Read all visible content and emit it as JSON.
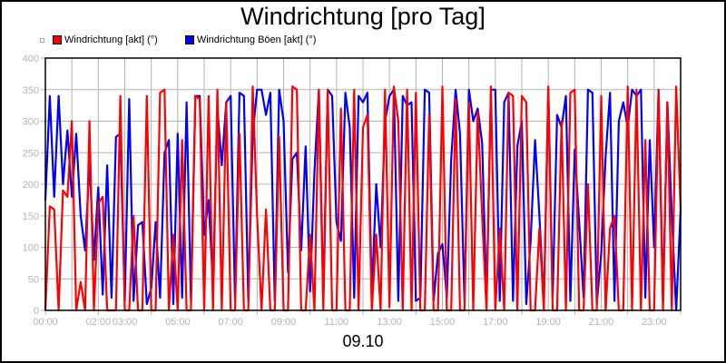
{
  "chart_data": {
    "type": "line",
    "title": "Windrichtung [pro Tag]",
    "xlabel": "09.10",
    "ylabel": "",
    "ylim": [
      0,
      400
    ],
    "xlim_hours": [
      0,
      24
    ],
    "grid": true,
    "legend_position": "top-left",
    "y_ticks": [
      "0",
      "50",
      "100",
      "150",
      "200",
      "250",
      "300",
      "350",
      "400"
    ],
    "x_ticks": [
      {
        "hour": 0,
        "label": "00:00"
      },
      {
        "hour": 2,
        "label": "02:00"
      },
      {
        "hour": 3,
        "label": "03:00"
      },
      {
        "hour": 5,
        "label": "05:00"
      },
      {
        "hour": 7,
        "label": "07:00"
      },
      {
        "hour": 9,
        "label": "09:00"
      },
      {
        "hour": 11,
        "label": "11:00"
      },
      {
        "hour": 13,
        "label": "13:00"
      },
      {
        "hour": 15,
        "label": "15:00"
      },
      {
        "hour": 17,
        "label": "17:00"
      },
      {
        "hour": 19,
        "label": "19:00"
      },
      {
        "hour": 21,
        "label": "21:00"
      },
      {
        "hour": 23,
        "label": "23:00"
      }
    ],
    "x_interval_minutes": 10,
    "series": [
      {
        "name": "Windrichtung Böen [akt] (°)",
        "color": "#0000ff",
        "values": [
          175,
          340,
          180,
          340,
          200,
          285,
          180,
          280,
          150,
          95,
          235,
          80,
          195,
          25,
          230,
          20,
          275,
          280,
          15,
          335,
          15,
          135,
          140,
          10,
          35,
          140,
          20,
          250,
          270,
          10,
          280,
          20,
          330,
          15,
          340,
          340,
          120,
          175,
          40,
          320,
          230,
          330,
          340,
          15,
          345,
          340,
          15,
          280,
          350,
          350,
          310,
          345,
          15,
          350,
          300,
          60,
          240,
          250,
          95,
          260,
          30,
          220,
          350,
          20,
          350,
          340,
          140,
          110,
          345,
          290,
          20,
          340,
          330,
          345,
          25,
          200,
          100,
          300,
          340,
          350,
          15,
          340,
          325,
          330,
          15,
          20,
          350,
          345,
          15,
          90,
          105,
          20,
          240,
          350,
          280,
          15,
          350,
          300,
          320,
          265,
          15,
          350,
          350,
          15,
          330,
          345,
          15,
          260,
          300,
          10,
          110,
          270,
          150,
          10,
          350,
          20,
          310,
          290,
          340,
          15,
          255,
          140,
          20,
          350,
          345,
          10,
          90,
          245,
          345,
          15,
          300,
          330,
          290,
          350,
          340,
          350,
          20,
          270,
          100,
          350,
          15,
          330,
          150,
          0,
          160
        ]
      },
      {
        "name": "Windrichtung [akt] (°)",
        "color": "#ff0000",
        "values": [
          0,
          165,
          160,
          0,
          190,
          180,
          300,
          0,
          45,
          0,
          300,
          0,
          170,
          180,
          0,
          0,
          0,
          340,
          0,
          0,
          150,
          0,
          0,
          340,
          0,
          0,
          345,
          350,
          0,
          120,
          0,
          270,
          0,
          0,
          340,
          335,
          0,
          340,
          0,
          350,
          0,
          330,
          0,
          0,
          280,
          0,
          0,
          355,
          150,
          0,
          160,
          0,
          0,
          275,
          0,
          0,
          355,
          350,
          0,
          0,
          120,
          0,
          350,
          0,
          350,
          0,
          0,
          320,
          0,
          0,
          350,
          0,
          290,
          310,
          0,
          120,
          0,
          350,
          5,
          355,
          300,
          0,
          350,
          0,
          345,
          0,
          0,
          310,
          0,
          0,
          355,
          0,
          0,
          335,
          0,
          0,
          330,
          0,
          315,
          150,
          0,
          355,
          0,
          130,
          0,
          345,
          340,
          0,
          340,
          330,
          0,
          0,
          130,
          0,
          355,
          0,
          0,
          300,
          0,
          345,
          350,
          0,
          0,
          200,
          0,
          0,
          340,
          0,
          130,
          150,
          0,
          0,
          355,
          0,
          350,
          0,
          270,
          0,
          0,
          350,
          0,
          330,
          0,
          355,
          160
        ]
      }
    ]
  },
  "header": {
    "title": "Windrichtung [pro Tag]"
  },
  "legend": {
    "items": [
      {
        "label": "Windrichtung [akt] (°)",
        "color": "#ff0000"
      },
      {
        "label": "Windrichtung Böen [akt] (°)",
        "color": "#0000ff"
      }
    ]
  },
  "footer": {
    "date": "09.10"
  },
  "colors": {
    "grid": "#b4b4b4",
    "axis": "#000000",
    "tick_text": "#b4b4b4"
  }
}
